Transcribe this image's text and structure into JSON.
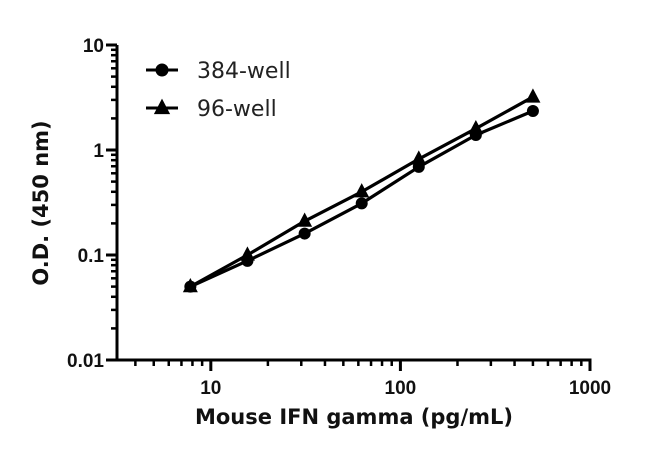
{
  "chart_data": {
    "type": "line",
    "title": "",
    "xlabel": "Mouse IFN gamma (pg/mL)",
    "ylabel": "O.D. (450 nm)",
    "xscale": "log",
    "yscale": "log",
    "xlim": [
      3.2,
      1000
    ],
    "ylim": [
      0.01,
      10
    ],
    "xticks": [
      10,
      100,
      1000
    ],
    "xtick_labels": [
      "10",
      "100",
      "1000"
    ],
    "yticks": [
      0.01,
      0.1,
      1,
      10
    ],
    "ytick_labels": [
      "0.01",
      "0.1",
      "1",
      "10"
    ],
    "grid": false,
    "legend_position": "upper left",
    "x": [
      7.8,
      15.6,
      31.25,
      62.5,
      125,
      250,
      500
    ],
    "series": [
      {
        "name": "384-well",
        "marker": "circle",
        "color": "#000000",
        "values": [
          0.05,
          0.088,
          0.16,
          0.31,
          0.69,
          1.39,
          2.35
        ]
      },
      {
        "name": "96-well",
        "marker": "triangle",
        "color": "#000000",
        "values": [
          0.05,
          0.1,
          0.21,
          0.4,
          0.82,
          1.6,
          3.2
        ]
      }
    ]
  }
}
